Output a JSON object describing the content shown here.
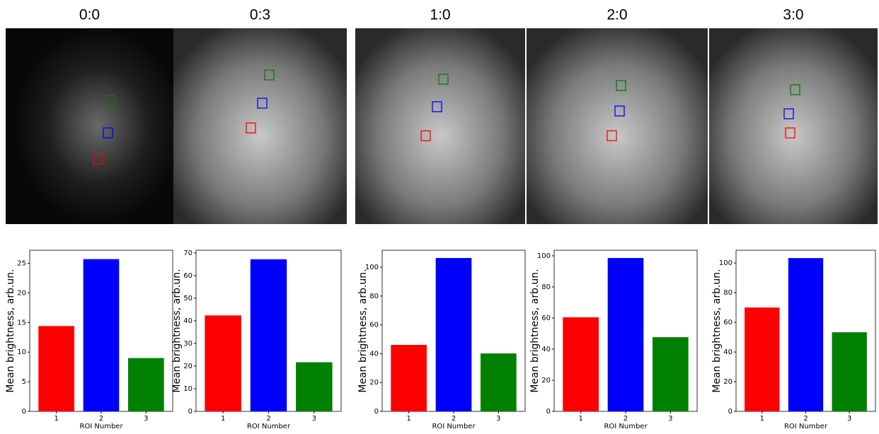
{
  "chart_data": [
    {
      "type": "bar",
      "title": "0:0",
      "categories": [
        "1",
        "2",
        "3"
      ],
      "values": [
        14.4,
        25.7,
        9.0
      ],
      "colors": [
        "#ff0000",
        "#0000ff",
        "#008000"
      ],
      "xlabel": "ROI Number",
      "ylabel": "Mean brightness, arb.un.",
      "ylim": [
        0,
        27.2
      ],
      "yticks": [
        0,
        5,
        10,
        15,
        20,
        25
      ]
    },
    {
      "type": "bar",
      "title": "0:3",
      "categories": [
        "1",
        "2",
        "3"
      ],
      "values": [
        42.4,
        67.2,
        21.7
      ],
      "colors": [
        "#ff0000",
        "#0000ff",
        "#008000"
      ],
      "xlabel": "ROI Number",
      "ylabel": "Mean brightness, arb.un.",
      "ylim": [
        0,
        71.2
      ],
      "yticks": [
        0,
        10,
        20,
        30,
        40,
        50,
        60,
        70
      ]
    },
    {
      "type": "bar",
      "title": "1:0",
      "categories": [
        "1",
        "2",
        "3"
      ],
      "values": [
        46.1,
        106.4,
        40.2
      ],
      "colors": [
        "#ff0000",
        "#0000ff",
        "#008000"
      ],
      "xlabel": "ROI Number",
      "ylabel": "Mean brightness, arb.un.",
      "ylim": [
        0,
        111.8
      ],
      "yticks": [
        0,
        20,
        40,
        60,
        80,
        100
      ]
    },
    {
      "type": "bar",
      "title": "2:0",
      "categories": [
        "1",
        "2",
        "3"
      ],
      "values": [
        60.5,
        98.6,
        47.7
      ],
      "colors": [
        "#ff0000",
        "#0000ff",
        "#008000"
      ],
      "xlabel": "ROI Number",
      "ylabel": "Mean brightness, arb.un.",
      "ylim": [
        0,
        103.6
      ],
      "yticks": [
        0,
        20,
        40,
        60,
        80,
        100
      ]
    },
    {
      "type": "bar",
      "title": "3:0",
      "categories": [
        "1",
        "2",
        "3"
      ],
      "values": [
        70,
        103.3,
        53.3
      ],
      "colors": [
        "#ff0000",
        "#0000ff",
        "#008000"
      ],
      "xlabel": "ROI Number",
      "ylabel": "Mean brightness, arb.un.",
      "ylim": [
        0,
        108.6
      ],
      "yticks": [
        0,
        20,
        40,
        60,
        80,
        100
      ]
    }
  ]
}
